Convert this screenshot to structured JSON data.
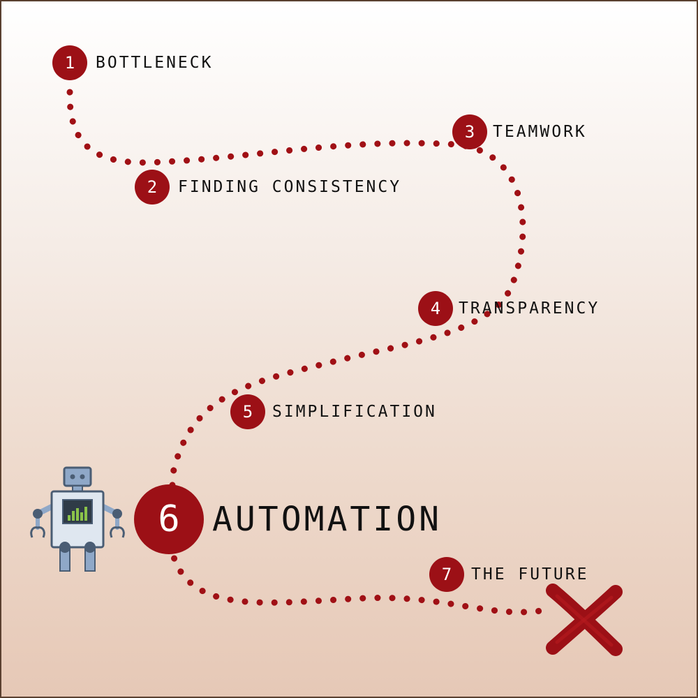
{
  "colors": {
    "accent": "#9c1016",
    "text": "#111111",
    "border": "#5a4030"
  },
  "steps": [
    {
      "number": "1",
      "label": "BOTTLENECK"
    },
    {
      "number": "2",
      "label": "FINDING CONSISTENCY"
    },
    {
      "number": "3",
      "label": "TEAMWORK"
    },
    {
      "number": "4",
      "label": "TRANSPARENCY"
    },
    {
      "number": "5",
      "label": "SIMPLIFICATION"
    },
    {
      "number": "6",
      "label": "AUTOMATION"
    },
    {
      "number": "7",
      "label": "THE FUTURE"
    }
  ],
  "icons": {
    "robot": "robot-icon",
    "destination": "x-mark-icon"
  }
}
